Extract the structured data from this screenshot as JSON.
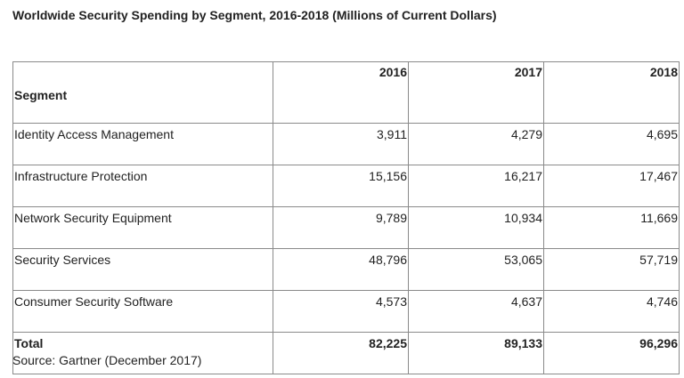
{
  "title": "Worldwide Security Spending by Segment, 2016-2018 (Millions of Current Dollars)",
  "table": {
    "headers": [
      "Segment",
      "2016",
      "2017",
      "2018"
    ],
    "rows": [
      [
        "Identity Access Management",
        "3,911",
        "4,279",
        "4,695"
      ],
      [
        "Infrastructure Protection",
        "15,156",
        "16,217",
        "17,467"
      ],
      [
        "Network Security Equipment",
        "9,789",
        "10,934",
        "11,669"
      ],
      [
        "Security Services",
        "48,796",
        "53,065",
        "57,719"
      ],
      [
        "Consumer Security Software",
        "4,573",
        "4,637",
        "4,746"
      ]
    ],
    "total": [
      "Total",
      "82,225",
      "89,133",
      "96,296"
    ]
  },
  "source": "Source: Gartner (December 2017)"
}
